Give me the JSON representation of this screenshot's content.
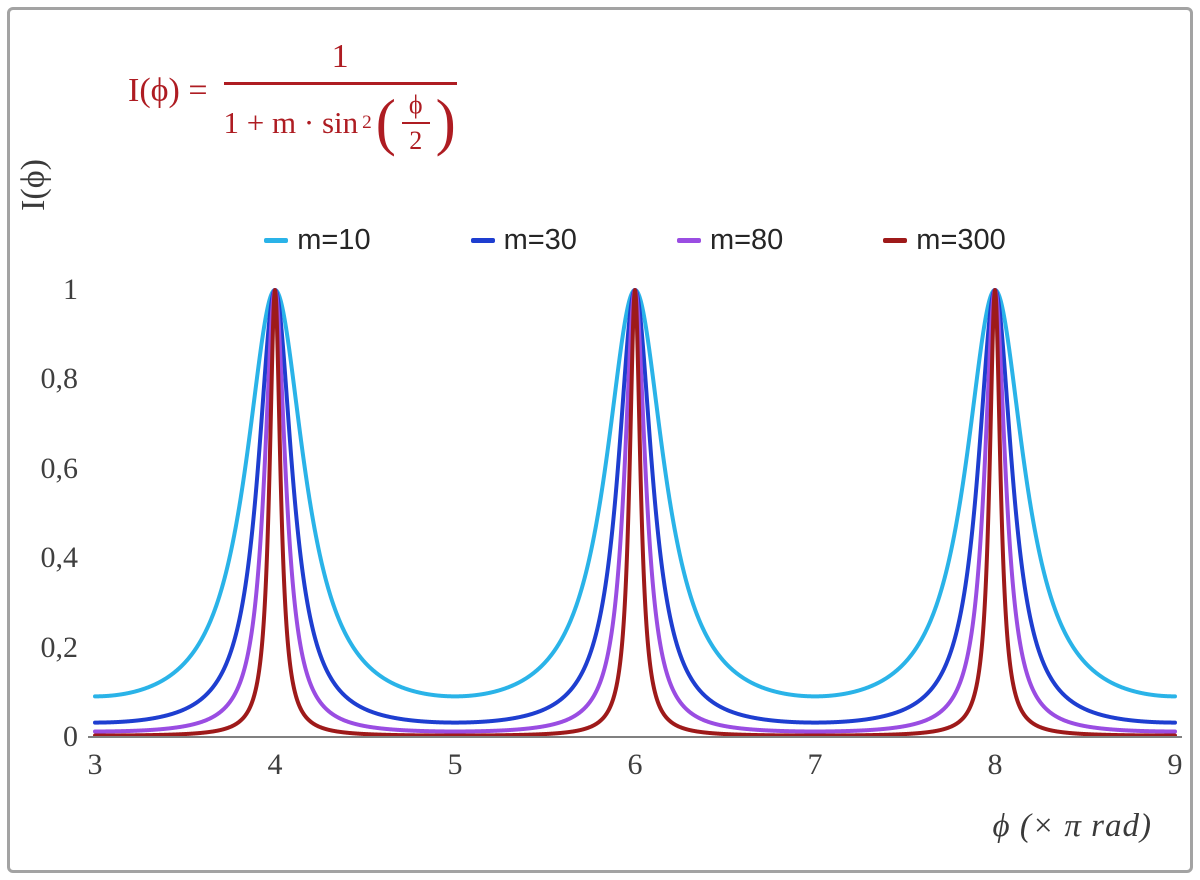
{
  "frame": {
    "border_color": "#a3a3a3",
    "background": "#ffffff",
    "axis_color": "#808080",
    "tick_color": "#3f3f3f"
  },
  "formula": {
    "color": "#ae1c22",
    "lhs": "I(ϕ) =",
    "numerator": "1",
    "den_text": "1 + m · sin",
    "den_exp": "2",
    "open_paren": "(",
    "inner_num": "ϕ",
    "inner_den": "2",
    "close_paren": ")"
  },
  "chart_data": {
    "type": "line",
    "title": "",
    "formula": "I(ϕ) = 1 / (1 + m·sin²(ϕ/2))",
    "xlabel": "ϕ  (× π rad)",
    "ylabel": "I(ϕ)",
    "x_unit": "π rad",
    "x_range": [
      3,
      9
    ],
    "y_range": [
      0,
      1
    ],
    "x_ticks": [
      "3",
      "4",
      "5",
      "6",
      "7",
      "8",
      "9"
    ],
    "y_ticks": [
      {
        "value": 0,
        "label": "0"
      },
      {
        "value": 0.2,
        "label": "0,2"
      },
      {
        "value": 0.4,
        "label": "0,4"
      },
      {
        "value": 0.6,
        "label": "0,6"
      },
      {
        "value": 0.8,
        "label": "0,8"
      },
      {
        "value": 1,
        "label": "1"
      }
    ],
    "peaks_at_x": [
      4,
      6,
      8
    ],
    "peak_y": 1,
    "samples_per_unit": 600,
    "legend_position": "top-center",
    "grid": false,
    "series": [
      {
        "name": "m=10",
        "m": 10,
        "color": "#2ab3e8",
        "min_y": 0.0909
      },
      {
        "name": "m=30",
        "m": 30,
        "color": "#1e3ed0",
        "min_y": 0.0323
      },
      {
        "name": "m=80",
        "m": 80,
        "color": "#9a4de2",
        "min_y": 0.0123
      },
      {
        "name": "m=300",
        "m": 300,
        "color": "#9e1a1a",
        "min_y": 0.0033
      }
    ]
  }
}
